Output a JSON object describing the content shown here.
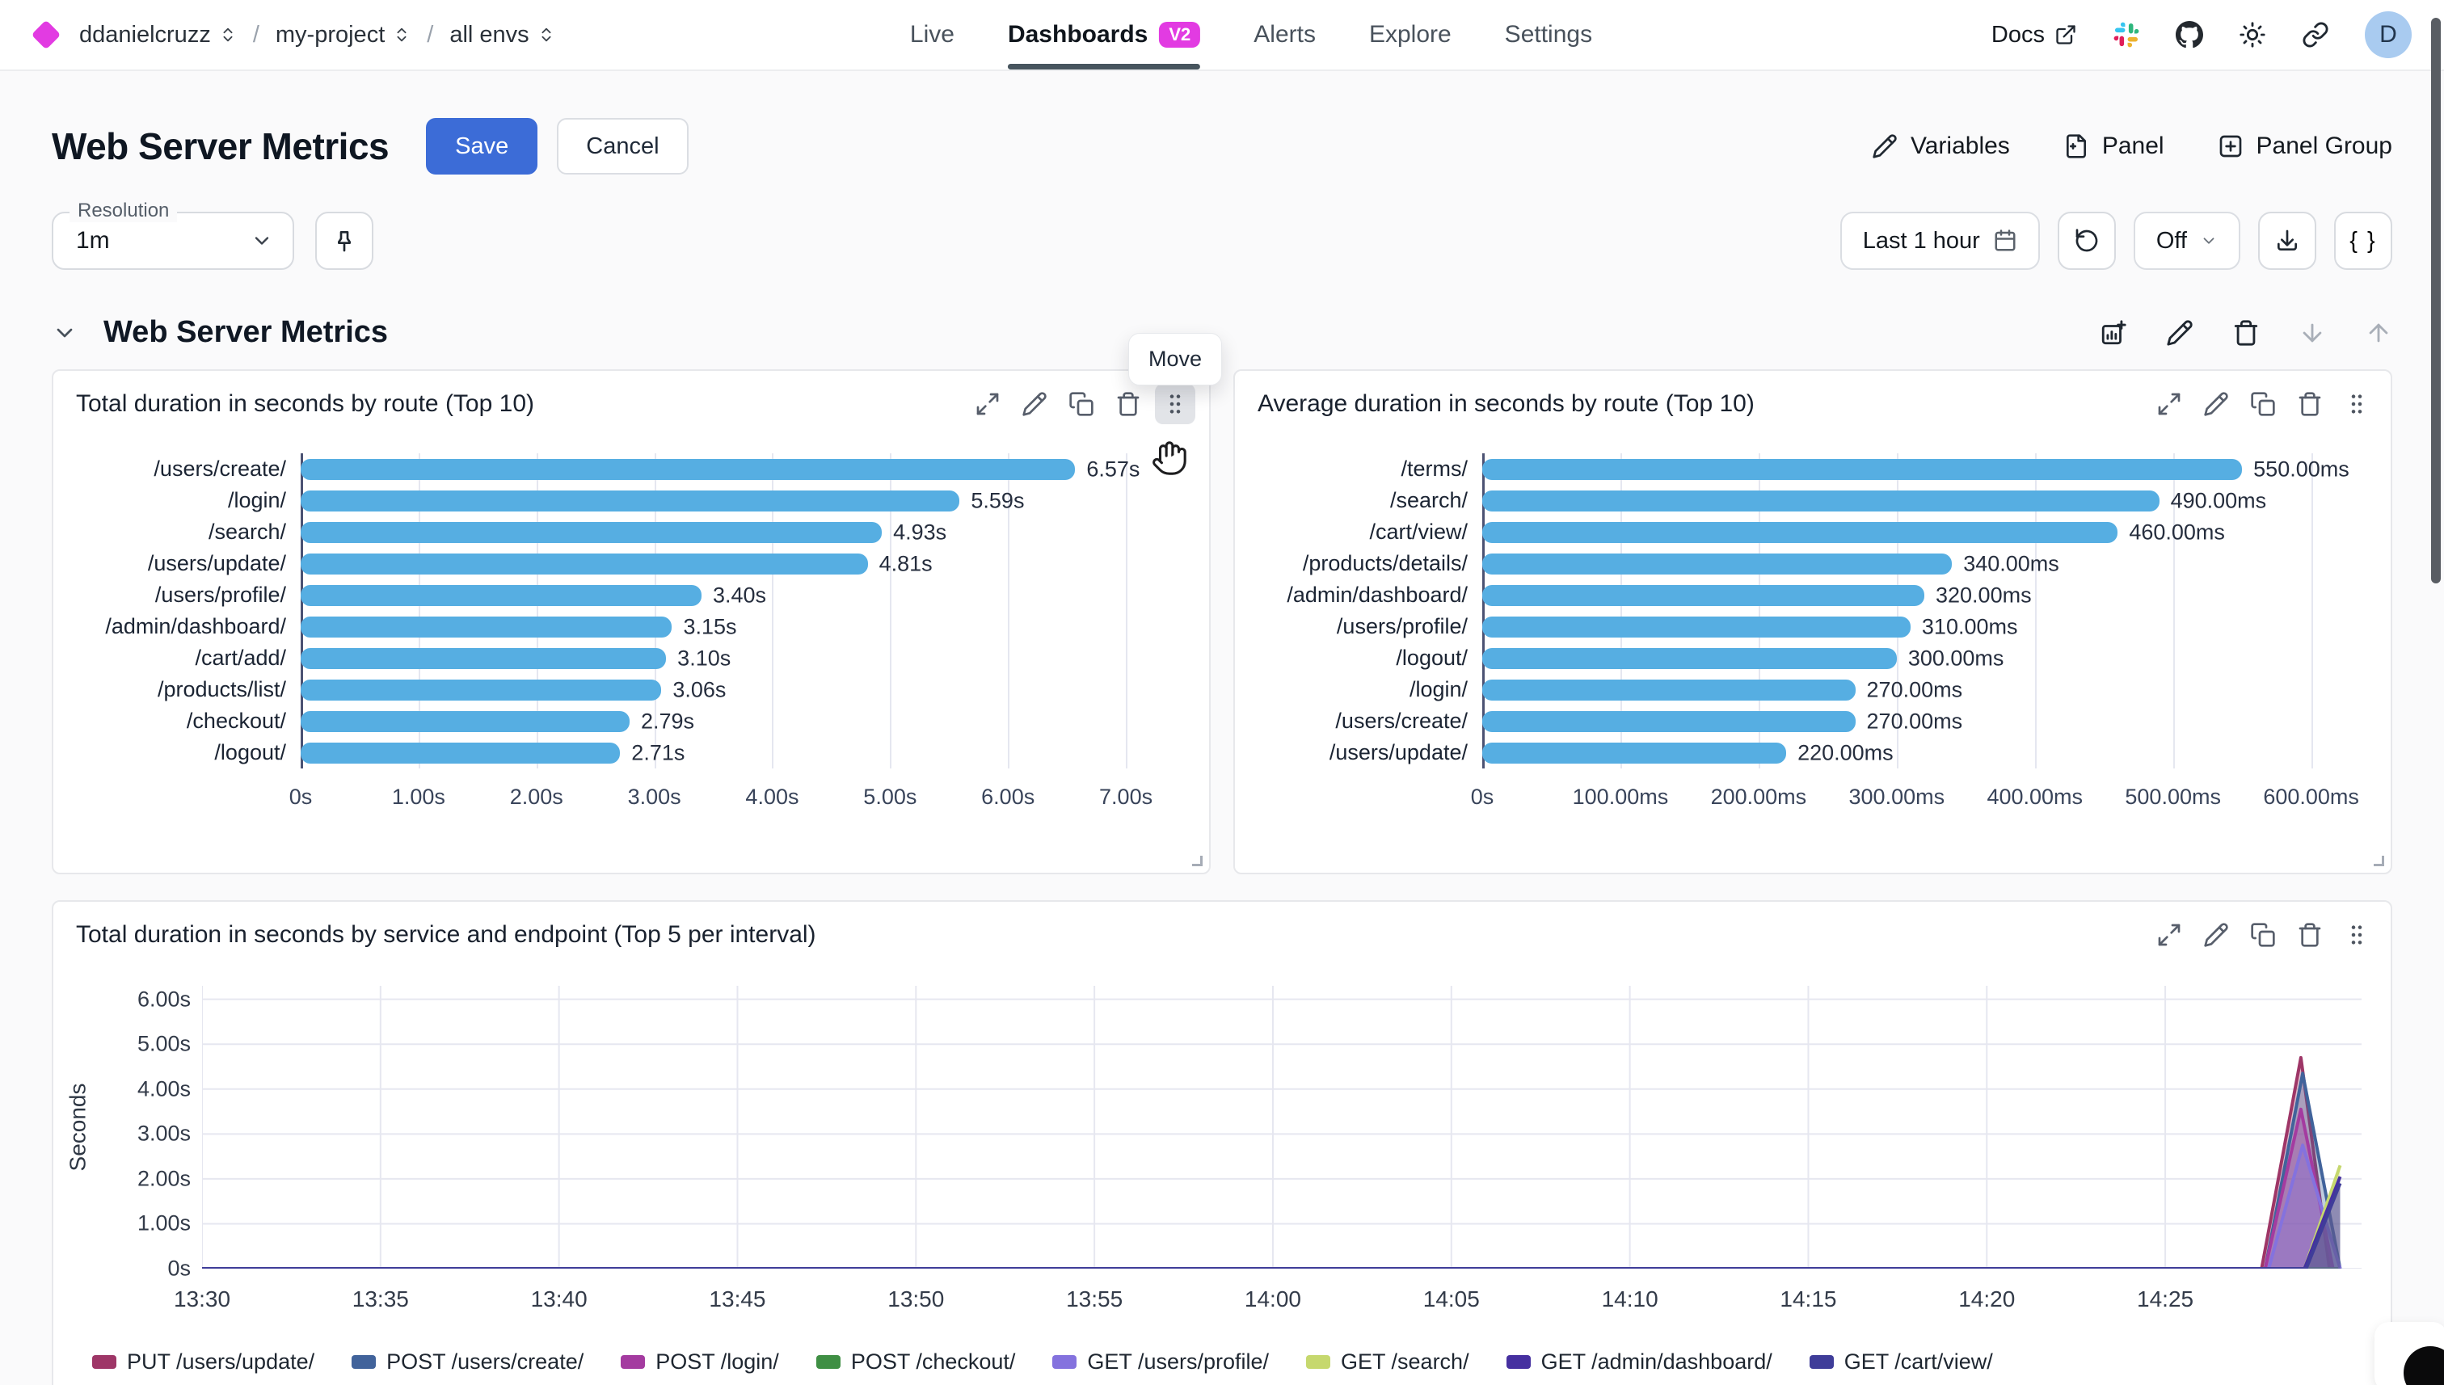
{
  "header": {
    "breadcrumb": {
      "org": "ddanielcruzz",
      "separator": "/",
      "project": "my-project",
      "environment": "all envs"
    },
    "nav": [
      {
        "label": "Live"
      },
      {
        "label": "Dashboards",
        "badge": "V2"
      },
      {
        "label": "Alerts"
      },
      {
        "label": "Explore"
      },
      {
        "label": "Settings"
      }
    ],
    "docs_label": "Docs",
    "avatar_initial": "D",
    "accent_color": "#E23BE2"
  },
  "toolbar": {
    "page_title": "Web Server Metrics",
    "save": "Save",
    "cancel": "Cancel",
    "variables": "Variables",
    "panel": "Panel",
    "panel_group": "Panel Group",
    "save_color": "#3C6CD7"
  },
  "controls": {
    "resolution_label": "Resolution",
    "resolution_value": "1m",
    "time_range": "Last 1 hour",
    "auto_refresh": "Off",
    "braces": "{ }"
  },
  "section": {
    "title": "Web Server Metrics",
    "move_tooltip": "Move"
  },
  "chart_data": [
    {
      "type": "bar",
      "orientation": "horizontal",
      "title": "Total duration in seconds by route (Top 10)",
      "categories": [
        "/users/create/",
        "/login/",
        "/search/",
        "/users/update/",
        "/users/profile/",
        "/admin/dashboard/",
        "/cart/add/",
        "/products/list/",
        "/checkout/",
        "/logout/"
      ],
      "values": [
        6.57,
        5.59,
        4.93,
        4.81,
        3.4,
        3.15,
        3.1,
        3.06,
        2.79,
        2.71
      ],
      "value_labels": [
        "6.57s",
        "5.59s",
        "4.93s",
        "4.81s",
        "3.40s",
        "3.15s",
        "3.10s",
        "3.06s",
        "2.79s",
        "2.71s"
      ],
      "xlim": [
        0,
        7.5
      ],
      "x_ticks": [
        {
          "v": 0,
          "label": "0s"
        },
        {
          "v": 1,
          "label": "1.00s"
        },
        {
          "v": 2,
          "label": "2.00s"
        },
        {
          "v": 3,
          "label": "3.00s"
        },
        {
          "v": 4,
          "label": "4.00s"
        },
        {
          "v": 5,
          "label": "5.00s"
        },
        {
          "v": 6,
          "label": "6.00s"
        },
        {
          "v": 7,
          "label": "7.00s"
        }
      ],
      "bar_color": "#56AEE2",
      "grid": true
    },
    {
      "type": "bar",
      "orientation": "horizontal",
      "title": "Average duration in seconds by route (Top 10)",
      "categories": [
        "/terms/",
        "/search/",
        "/cart/view/",
        "/products/details/",
        "/admin/dashboard/",
        "/users/profile/",
        "/logout/",
        "/login/",
        "/users/create/",
        "/users/update/"
      ],
      "values": [
        550,
        490,
        460,
        340,
        320,
        310,
        300,
        270,
        270,
        220
      ],
      "value_labels": [
        "550.00ms",
        "490.00ms",
        "460.00ms",
        "340.00ms",
        "320.00ms",
        "310.00ms",
        "300.00ms",
        "270.00ms",
        "270.00ms",
        "220.00ms"
      ],
      "xlim": [
        0,
        640
      ],
      "x_ticks": [
        {
          "v": 0,
          "label": "0s"
        },
        {
          "v": 100,
          "label": "100.00ms"
        },
        {
          "v": 200,
          "label": "200.00ms"
        },
        {
          "v": 300,
          "label": "300.00ms"
        },
        {
          "v": 400,
          "label": "400.00ms"
        },
        {
          "v": 500,
          "label": "500.00ms"
        },
        {
          "v": 600,
          "label": "600.00ms"
        }
      ],
      "bar_color": "#56AEE2",
      "grid": true
    },
    {
      "type": "area",
      "title": "Total duration in seconds by service and endpoint (Top 5 per interval)",
      "ylabel": "Seconds",
      "ylim": [
        0,
        6.3
      ],
      "y_ticks": [
        {
          "v": 0,
          "label": "0s"
        },
        {
          "v": 1,
          "label": "1.00s"
        },
        {
          "v": 2,
          "label": "2.00s"
        },
        {
          "v": 3,
          "label": "3.00s"
        },
        {
          "v": 4,
          "label": "4.00s"
        },
        {
          "v": 5,
          "label": "5.00s"
        },
        {
          "v": 6,
          "label": "6.00s"
        }
      ],
      "x_domain_minutes": [
        0,
        60.5
      ],
      "x_ticks": [
        {
          "m": 0,
          "label": "13:30"
        },
        {
          "m": 5,
          "label": "13:35"
        },
        {
          "m": 10,
          "label": "13:40"
        },
        {
          "m": 15,
          "label": "13:45"
        },
        {
          "m": 20,
          "label": "13:50"
        },
        {
          "m": 25,
          "label": "13:55"
        },
        {
          "m": 30,
          "label": "14:00"
        },
        {
          "m": 35,
          "label": "14:05"
        },
        {
          "m": 40,
          "label": "14:10"
        },
        {
          "m": 45,
          "label": "14:15"
        },
        {
          "m": 50,
          "label": "14:20"
        },
        {
          "m": 55,
          "label": "14:25"
        }
      ],
      "grid": true,
      "legend_position": "bottom",
      "series": [
        {
          "name": "PUT /users/update/",
          "color": "#9E3667",
          "points": [
            [
              0,
              0
            ],
            [
              57.7,
              0
            ],
            [
              58.8,
              4.7
            ],
            [
              59.6,
              0
            ],
            [
              59.9,
              0
            ]
          ]
        },
        {
          "name": "POST /users/create/",
          "color": "#41639B",
          "points": [
            [
              0,
              0
            ],
            [
              57.8,
              0
            ],
            [
              58.85,
              4.35
            ],
            [
              59.9,
              0
            ]
          ]
        },
        {
          "name": "POST /login/",
          "color": "#A43BA0",
          "points": [
            [
              0,
              0
            ],
            [
              57.8,
              0
            ],
            [
              58.8,
              3.55
            ],
            [
              59.7,
              0
            ],
            [
              59.9,
              0
            ]
          ]
        },
        {
          "name": "POST /checkout/",
          "color": "#3F8F44",
          "points": [
            [
              0,
              0
            ],
            [
              59.9,
              0
            ]
          ]
        },
        {
          "name": "GET /users/profile/",
          "color": "#8472DE",
          "points": [
            [
              0,
              0
            ],
            [
              57.9,
              0
            ],
            [
              58.85,
              2.75
            ],
            [
              59.9,
              0
            ]
          ]
        },
        {
          "name": "GET /search/",
          "color": "#C6D86E",
          "points": [
            [
              0,
              0
            ],
            [
              58.9,
              0
            ],
            [
              59.9,
              2.3
            ]
          ]
        },
        {
          "name": "GET /admin/dashboard/",
          "color": "#4630A0",
          "points": [
            [
              0,
              0
            ],
            [
              58.9,
              0
            ],
            [
              59.9,
              2.05
            ]
          ]
        },
        {
          "name": "GET /cart/view/",
          "color": "#3F3D99",
          "points": [
            [
              0,
              0
            ],
            [
              58.95,
              0
            ],
            [
              59.9,
              1.9
            ]
          ]
        }
      ]
    }
  ]
}
